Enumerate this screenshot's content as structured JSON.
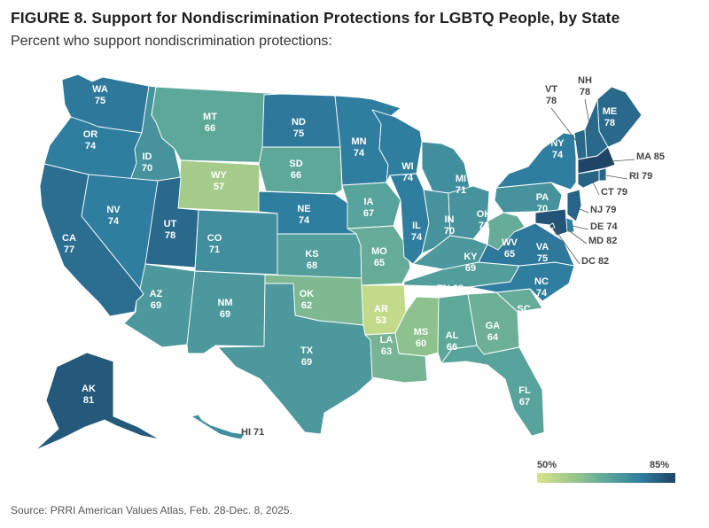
{
  "title": "FIGURE 8.  Support for Nondiscrimination Protections for LGBTQ People, by State",
  "subtitle": "Percent who support nondiscrimination protections:",
  "legend": {
    "min_label": "50%",
    "max_label": "85%",
    "min_color": "#dbe48c",
    "max_color": "#1f4466"
  },
  "source": "Source: PRRI American Values Atlas, Feb. 28-Dec. 8, 2025.",
  "states": [
    {
      "abbr": "WA",
      "value": 75
    },
    {
      "abbr": "OR",
      "value": 74
    },
    {
      "abbr": "CA",
      "value": 77
    },
    {
      "abbr": "ID",
      "value": 70
    },
    {
      "abbr": "NV",
      "value": 74
    },
    {
      "abbr": "MT",
      "value": 66
    },
    {
      "abbr": "WY",
      "value": 57
    },
    {
      "abbr": "UT",
      "value": 78
    },
    {
      "abbr": "CO",
      "value": 71
    },
    {
      "abbr": "AZ",
      "value": 69
    },
    {
      "abbr": "NM",
      "value": 69
    },
    {
      "abbr": "ND",
      "value": 75
    },
    {
      "abbr": "SD",
      "value": 66
    },
    {
      "abbr": "NE",
      "value": 74
    },
    {
      "abbr": "KS",
      "value": 68
    },
    {
      "abbr": "OK",
      "value": 62
    },
    {
      "abbr": "TX",
      "value": 69
    },
    {
      "abbr": "MN",
      "value": 74
    },
    {
      "abbr": "IA",
      "value": 67
    },
    {
      "abbr": "MO",
      "value": 65
    },
    {
      "abbr": "AR",
      "value": 53
    },
    {
      "abbr": "LA",
      "value": 63
    },
    {
      "abbr": "WI",
      "value": 74
    },
    {
      "abbr": "IL",
      "value": 74
    },
    {
      "abbr": "MI",
      "value": 71
    },
    {
      "abbr": "IN",
      "value": 70
    },
    {
      "abbr": "OH",
      "value": 70
    },
    {
      "abbr": "KY",
      "value": 69
    },
    {
      "abbr": "TN",
      "value": 68
    },
    {
      "abbr": "MS",
      "value": 60
    },
    {
      "abbr": "AL",
      "value": 66
    },
    {
      "abbr": "GA",
      "value": 64
    },
    {
      "abbr": "FL",
      "value": 67
    },
    {
      "abbr": "SC",
      "value": 65
    },
    {
      "abbr": "NC",
      "value": 74
    },
    {
      "abbr": "VA",
      "value": 75
    },
    {
      "abbr": "WV",
      "value": 65
    },
    {
      "abbr": "PA",
      "value": 70
    },
    {
      "abbr": "NY",
      "value": 74
    },
    {
      "abbr": "ME",
      "value": 78
    },
    {
      "abbr": "VT",
      "value": 78
    },
    {
      "abbr": "NH",
      "value": 78
    },
    {
      "abbr": "MA",
      "value": 85
    },
    {
      "abbr": "RI",
      "value": 79
    },
    {
      "abbr": "CT",
      "value": 79
    },
    {
      "abbr": "NJ",
      "value": 79
    },
    {
      "abbr": "DE",
      "value": 74
    },
    {
      "abbr": "MD",
      "value": 82
    },
    {
      "abbr": "DC",
      "value": 82
    },
    {
      "abbr": "AK",
      "value": 81
    },
    {
      "abbr": "HI",
      "value": 71
    }
  ]
}
